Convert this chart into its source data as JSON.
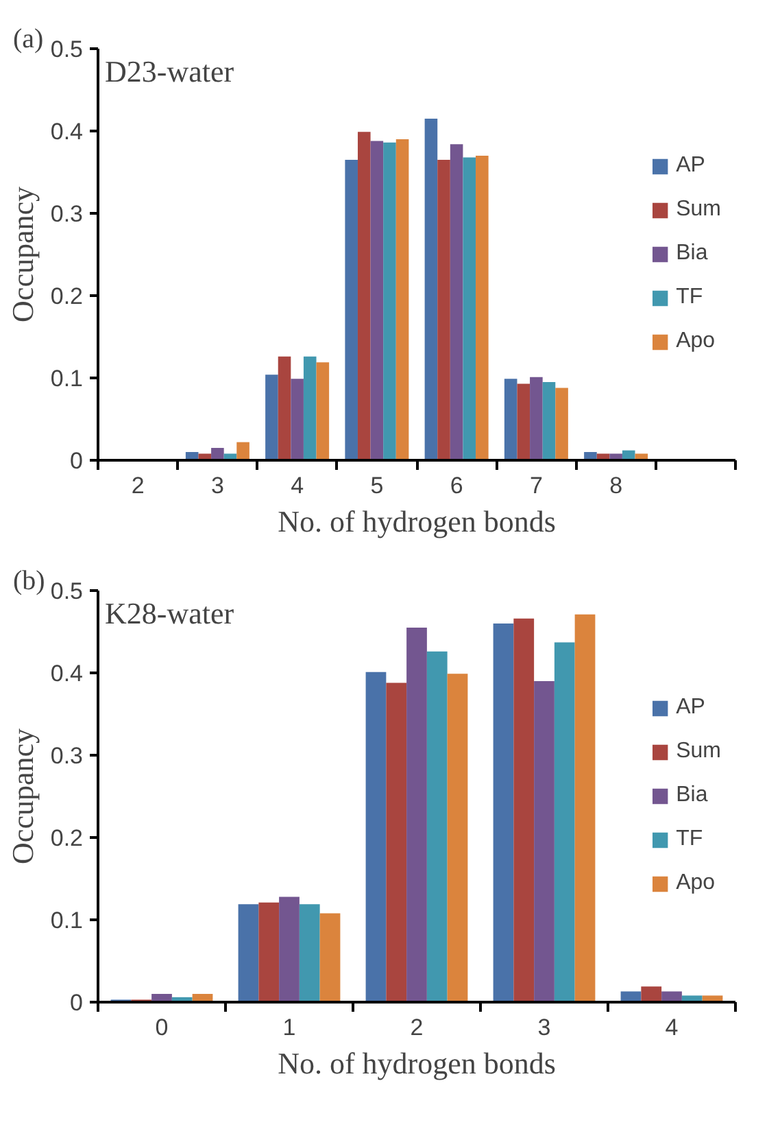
{
  "chart_data": [
    {
      "type": "bar",
      "xlabel": "No. of hydrogen bonds",
      "ylabel": "Occupancy",
      "annotations": [
        "(a)",
        "D23-water"
      ],
      "categories": [
        "2",
        "3",
        "4",
        "5",
        "6",
        "7",
        "8",
        null
      ],
      "ylim": [
        0,
        0.5
      ],
      "yticks": [
        0,
        0.1,
        0.2,
        0.3,
        0.4,
        0.5
      ],
      "grid": false,
      "legend": "right",
      "series": [
        {
          "name": "AP",
          "color": "#4a72a9",
          "values": [
            0,
            0.01,
            0.104,
            0.365,
            0.415,
            0.099,
            0.01,
            null
          ]
        },
        {
          "name": "Sum",
          "color": "#a9453f",
          "values": [
            0,
            0.008,
            0.126,
            0.399,
            0.365,
            0.093,
            0.008,
            null
          ]
        },
        {
          "name": "Bia",
          "color": "#735690",
          "values": [
            0,
            0.015,
            0.099,
            0.388,
            0.384,
            0.101,
            0.008,
            null
          ]
        },
        {
          "name": "TF",
          "color": "#4198af",
          "values": [
            0,
            0.008,
            0.126,
            0.386,
            0.368,
            0.095,
            0.012,
            null
          ]
        },
        {
          "name": "Apo",
          "color": "#db843d",
          "values": [
            0,
            0.022,
            0.119,
            0.39,
            0.37,
            0.088,
            0.008,
            null
          ]
        }
      ]
    },
    {
      "type": "bar",
      "xlabel": "No. of hydrogen bonds",
      "ylabel": "Occupancy",
      "annotations": [
        "(b)",
        "K28-water"
      ],
      "categories": [
        "0",
        "1",
        "2",
        "3",
        "4"
      ],
      "ylim": [
        0,
        0.5
      ],
      "yticks": [
        0,
        0.1,
        0.2,
        0.3,
        0.4,
        0.5
      ],
      "grid": false,
      "legend": "right",
      "series": [
        {
          "name": "AP",
          "color": "#4a72a9",
          "values": [
            0.003,
            0.119,
            0.401,
            0.46,
            0.013
          ]
        },
        {
          "name": "Sum",
          "color": "#a9453f",
          "values": [
            0.003,
            0.121,
            0.388,
            0.466,
            0.019
          ]
        },
        {
          "name": "Bia",
          "color": "#735690",
          "values": [
            0.01,
            0.128,
            0.455,
            0.39,
            0.013
          ]
        },
        {
          "name": "TF",
          "color": "#4198af",
          "values": [
            0.006,
            0.119,
            0.426,
            0.437,
            0.008
          ]
        },
        {
          "name": "Apo",
          "color": "#db843d",
          "values": [
            0.01,
            0.108,
            0.399,
            0.471,
            0.008
          ]
        }
      ]
    }
  ]
}
